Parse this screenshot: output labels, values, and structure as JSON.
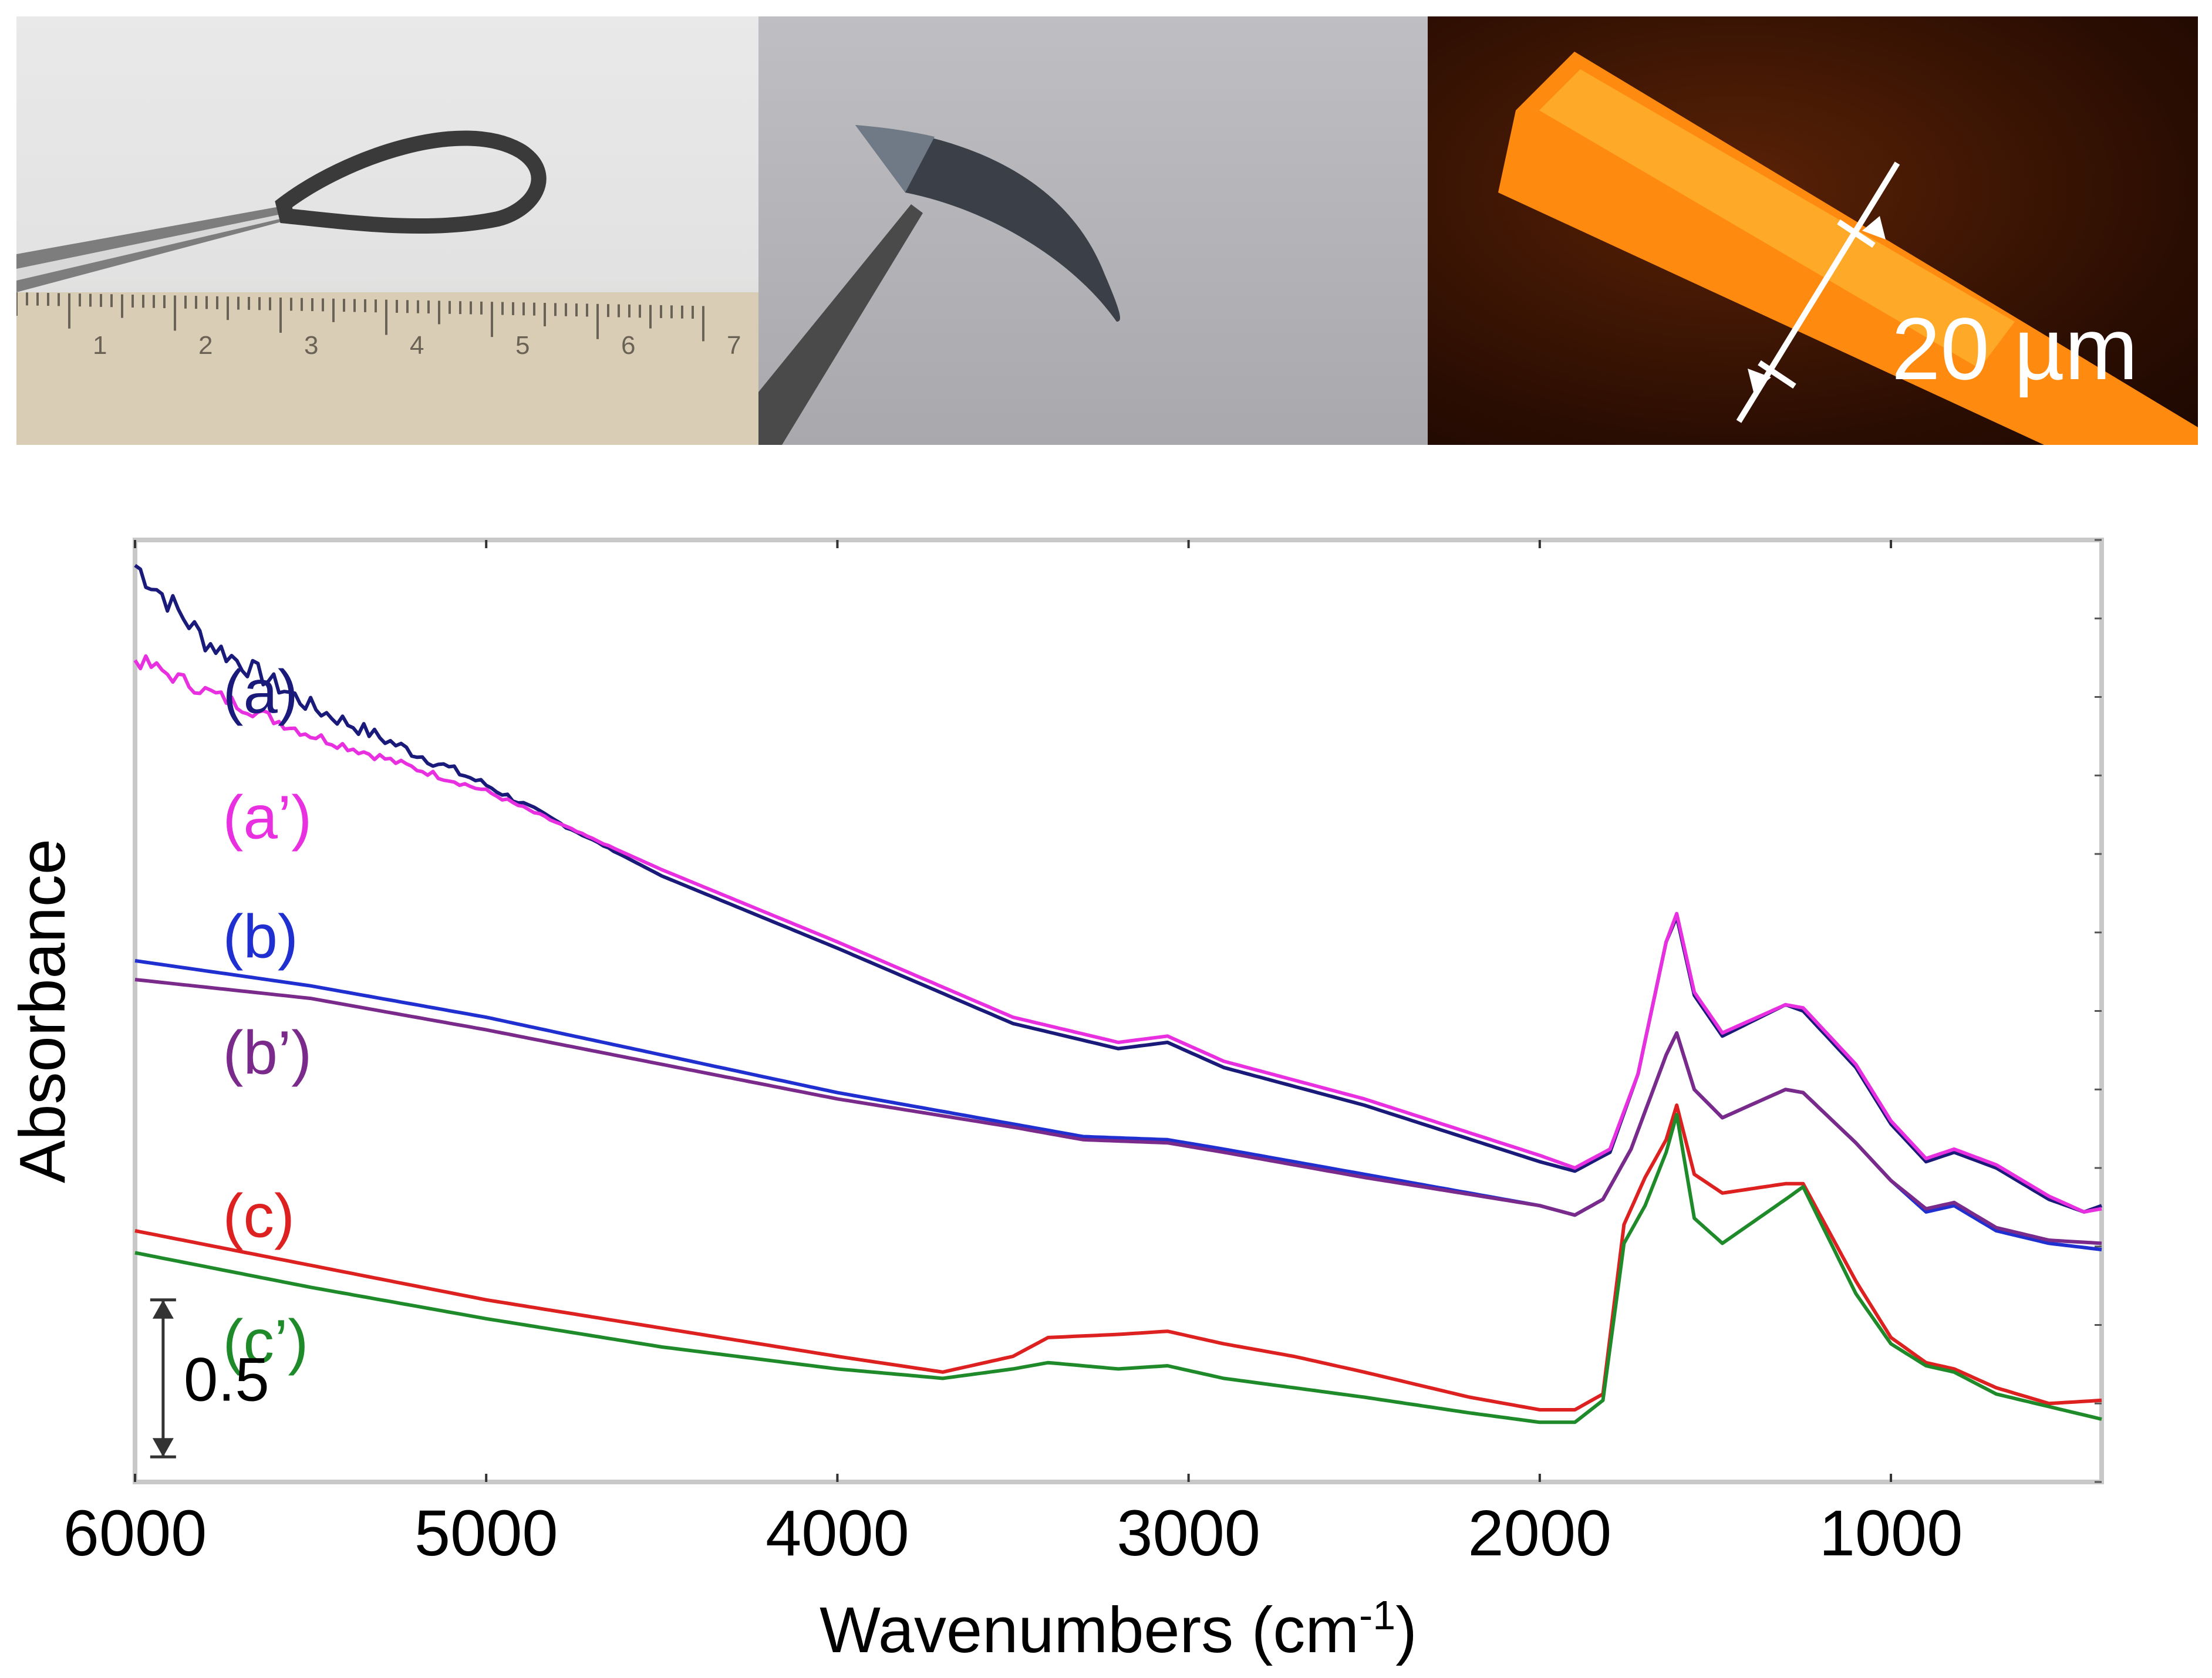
{
  "photos": {
    "panel1": {
      "description_icon": "flexible-film-loop-photo",
      "ruler_ticks": [
        "1",
        "2",
        "3",
        "4",
        "5",
        "6",
        "7"
      ]
    },
    "panel2": {
      "description_icon": "bent-film-photo"
    },
    "panel3": {
      "description_icon": "micrograph-thickness-photo",
      "scale_label": "20 µm"
    }
  },
  "colors": {
    "a": "#1a1a7a",
    "a_prime": "#e830e0",
    "b": "#1f2fd0",
    "b_prime": "#7a2a8a",
    "c": "#dd2020",
    "c_prime": "#1f8a2a",
    "axis": "#c8c8c8"
  },
  "chart_data": {
    "type": "line",
    "title": "",
    "xlabel": "Wavenumbers (cm",
    "xlabel_sup": "-1",
    "xlabel_end": ")",
    "ylabel": "Absorbance",
    "xlim": [
      6000,
      400
    ],
    "ylim": [
      0,
      3.0
    ],
    "x_ticks": [
      6000,
      5000,
      4000,
      3000,
      2000,
      1000
    ],
    "scale_bar": {
      "label": "0.5",
      "value": 0.5,
      "bottom": 0.08
    },
    "series": [
      {
        "name": "a",
        "label": "(a)",
        "label_at": [
          5750,
          2.45
        ],
        "noisy": 1,
        "points": [
          [
            6000,
            2.92
          ],
          [
            5800,
            2.68
          ],
          [
            5500,
            2.47
          ],
          [
            5000,
            2.22
          ],
          [
            4500,
            1.93
          ],
          [
            4000,
            1.7
          ],
          [
            3500,
            1.46
          ],
          [
            3200,
            1.38
          ],
          [
            3060,
            1.4
          ],
          [
            2900,
            1.32
          ],
          [
            2500,
            1.2
          ],
          [
            2000,
            1.02
          ],
          [
            1900,
            0.99
          ],
          [
            1800,
            1.05
          ],
          [
            1720,
            1.3
          ],
          [
            1640,
            1.72
          ],
          [
            1610,
            1.8
          ],
          [
            1560,
            1.55
          ],
          [
            1480,
            1.42
          ],
          [
            1300,
            1.52
          ],
          [
            1250,
            1.5
          ],
          [
            1100,
            1.32
          ],
          [
            1000,
            1.14
          ],
          [
            900,
            1.02
          ],
          [
            820,
            1.05
          ],
          [
            700,
            1.0
          ],
          [
            550,
            0.9
          ],
          [
            450,
            0.86
          ],
          [
            400,
            0.88
          ]
        ]
      },
      {
        "name": "a_prime",
        "label": "(a’)",
        "label_at": [
          5750,
          2.05
        ],
        "noisy": 0.6,
        "points": [
          [
            6000,
            2.62
          ],
          [
            5800,
            2.52
          ],
          [
            5500,
            2.38
          ],
          [
            5000,
            2.2
          ],
          [
            4500,
            1.95
          ],
          [
            4000,
            1.72
          ],
          [
            3500,
            1.48
          ],
          [
            3200,
            1.4
          ],
          [
            3060,
            1.42
          ],
          [
            2900,
            1.34
          ],
          [
            2500,
            1.22
          ],
          [
            2000,
            1.04
          ],
          [
            1900,
            1.0
          ],
          [
            1800,
            1.06
          ],
          [
            1720,
            1.3
          ],
          [
            1640,
            1.72
          ],
          [
            1610,
            1.81
          ],
          [
            1560,
            1.56
          ],
          [
            1480,
            1.43
          ],
          [
            1300,
            1.52
          ],
          [
            1250,
            1.51
          ],
          [
            1100,
            1.33
          ],
          [
            1000,
            1.15
          ],
          [
            900,
            1.03
          ],
          [
            820,
            1.06
          ],
          [
            700,
            1.01
          ],
          [
            550,
            0.91
          ],
          [
            450,
            0.86
          ],
          [
            400,
            0.87
          ]
        ]
      },
      {
        "name": "b",
        "label": "(b)",
        "label_at": [
          5750,
          1.67
        ],
        "noisy": 0,
        "points": [
          [
            6000,
            1.66
          ],
          [
            5500,
            1.58
          ],
          [
            5000,
            1.48
          ],
          [
            4500,
            1.36
          ],
          [
            4000,
            1.24
          ],
          [
            3500,
            1.14
          ],
          [
            3300,
            1.1
          ],
          [
            3060,
            1.09
          ],
          [
            2900,
            1.06
          ],
          [
            2500,
            0.98
          ],
          [
            2000,
            0.88
          ],
          [
            1900,
            0.85
          ],
          [
            1820,
            0.9
          ],
          [
            1740,
            1.06
          ],
          [
            1640,
            1.36
          ],
          [
            1610,
            1.43
          ],
          [
            1560,
            1.25
          ],
          [
            1480,
            1.16
          ],
          [
            1300,
            1.25
          ],
          [
            1250,
            1.24
          ],
          [
            1100,
            1.08
          ],
          [
            1000,
            0.96
          ],
          [
            900,
            0.86
          ],
          [
            820,
            0.88
          ],
          [
            700,
            0.8
          ],
          [
            550,
            0.76
          ],
          [
            400,
            0.74
          ]
        ]
      },
      {
        "name": "b_prime",
        "label": "(b’)",
        "label_at": [
          5750,
          1.3
        ],
        "noisy": 0,
        "points": [
          [
            6000,
            1.6
          ],
          [
            5500,
            1.54
          ],
          [
            5000,
            1.44
          ],
          [
            4500,
            1.33
          ],
          [
            4000,
            1.22
          ],
          [
            3500,
            1.13
          ],
          [
            3300,
            1.09
          ],
          [
            3060,
            1.08
          ],
          [
            2900,
            1.05
          ],
          [
            2500,
            0.97
          ],
          [
            2000,
            0.88
          ],
          [
            1900,
            0.85
          ],
          [
            1820,
            0.9
          ],
          [
            1740,
            1.06
          ],
          [
            1640,
            1.36
          ],
          [
            1610,
            1.43
          ],
          [
            1560,
            1.25
          ],
          [
            1480,
            1.16
          ],
          [
            1300,
            1.25
          ],
          [
            1250,
            1.24
          ],
          [
            1100,
            1.08
          ],
          [
            1000,
            0.96
          ],
          [
            900,
            0.87
          ],
          [
            820,
            0.89
          ],
          [
            700,
            0.81
          ],
          [
            550,
            0.77
          ],
          [
            400,
            0.76
          ]
        ]
      },
      {
        "name": "c",
        "label": "(c)",
        "label_at": [
          5750,
          0.78
        ],
        "noisy": 0,
        "points": [
          [
            6000,
            0.8
          ],
          [
            5500,
            0.69
          ],
          [
            5000,
            0.58
          ],
          [
            4500,
            0.49
          ],
          [
            4000,
            0.4
          ],
          [
            3700,
            0.35
          ],
          [
            3500,
            0.4
          ],
          [
            3400,
            0.46
          ],
          [
            3200,
            0.47
          ],
          [
            3060,
            0.48
          ],
          [
            2900,
            0.44
          ],
          [
            2700,
            0.4
          ],
          [
            2500,
            0.35
          ],
          [
            2200,
            0.27
          ],
          [
            2000,
            0.23
          ],
          [
            1900,
            0.23
          ],
          [
            1820,
            0.28
          ],
          [
            1760,
            0.82
          ],
          [
            1700,
            0.97
          ],
          [
            1640,
            1.09
          ],
          [
            1610,
            1.2
          ],
          [
            1560,
            0.98
          ],
          [
            1480,
            0.92
          ],
          [
            1300,
            0.95
          ],
          [
            1250,
            0.95
          ],
          [
            1100,
            0.64
          ],
          [
            1000,
            0.46
          ],
          [
            900,
            0.38
          ],
          [
            820,
            0.36
          ],
          [
            700,
            0.3
          ],
          [
            550,
            0.25
          ],
          [
            400,
            0.26
          ]
        ]
      },
      {
        "name": "c_prime",
        "label": "(c’)",
        "label_at": [
          5750,
          0.38
        ],
        "noisy": 0,
        "points": [
          [
            6000,
            0.73
          ],
          [
            5500,
            0.62
          ],
          [
            5000,
            0.52
          ],
          [
            4500,
            0.43
          ],
          [
            4000,
            0.36
          ],
          [
            3700,
            0.33
          ],
          [
            3500,
            0.36
          ],
          [
            3400,
            0.38
          ],
          [
            3200,
            0.36
          ],
          [
            3060,
            0.37
          ],
          [
            2900,
            0.33
          ],
          [
            2700,
            0.3
          ],
          [
            2500,
            0.27
          ],
          [
            2200,
            0.22
          ],
          [
            2000,
            0.19
          ],
          [
            1900,
            0.19
          ],
          [
            1820,
            0.26
          ],
          [
            1760,
            0.76
          ],
          [
            1700,
            0.88
          ],
          [
            1640,
            1.05
          ],
          [
            1610,
            1.17
          ],
          [
            1560,
            0.84
          ],
          [
            1480,
            0.76
          ],
          [
            1300,
            0.9
          ],
          [
            1250,
            0.94
          ],
          [
            1100,
            0.6
          ],
          [
            1000,
            0.44
          ],
          [
            900,
            0.37
          ],
          [
            820,
            0.35
          ],
          [
            700,
            0.28
          ],
          [
            550,
            0.24
          ],
          [
            400,
            0.2
          ]
        ]
      }
    ]
  }
}
